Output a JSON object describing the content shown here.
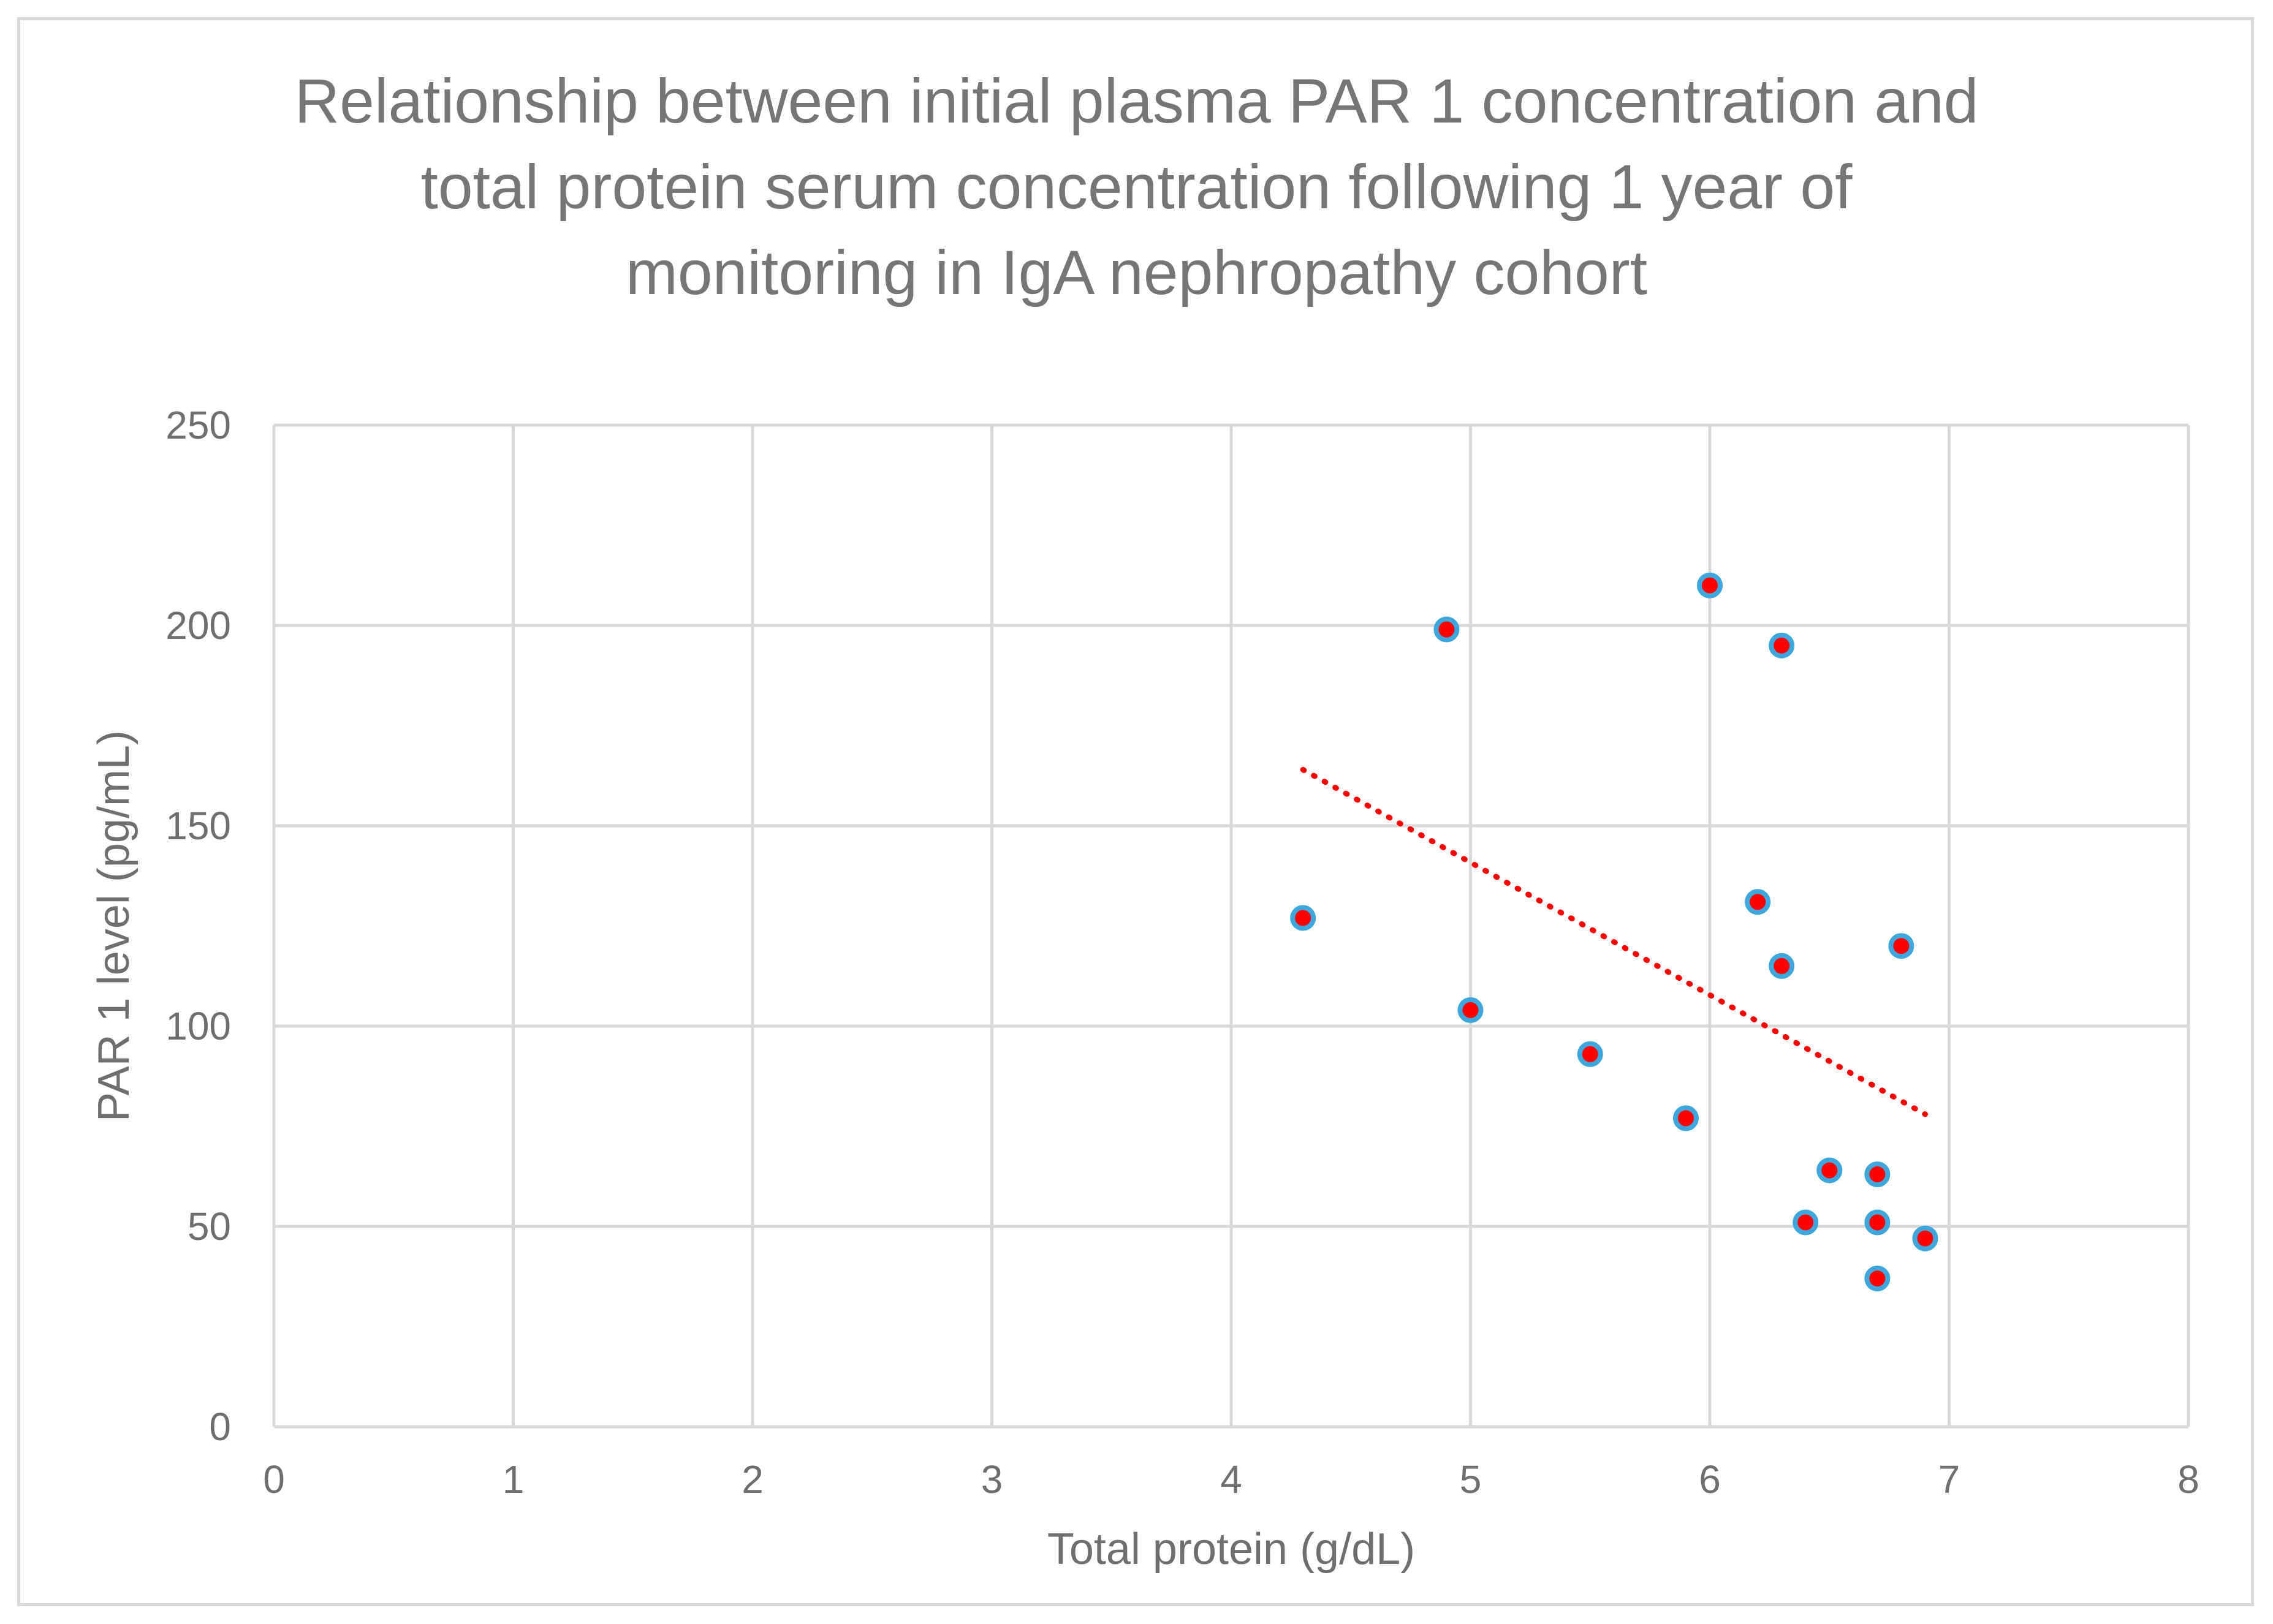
{
  "chart_data": {
    "type": "scatter",
    "title_lines": [
      "Relationship between initial plasma PAR 1 concentration and",
      "total protein serum concentration following  1 year of",
      "monitoring in IgA nephropathy cohort"
    ],
    "xlabel": "Total protein (g/dL)",
    "ylabel": "PAR 1 level (pg/mL)",
    "xlim": [
      0,
      8
    ],
    "ylim": [
      0,
      250
    ],
    "xticks": [
      "0",
      "1",
      "2",
      "3",
      "4",
      "5",
      "6",
      "7",
      "8"
    ],
    "yticks": [
      "0",
      "50",
      "100",
      "150",
      "200",
      "250"
    ],
    "grid": true,
    "legend": "none",
    "series": [
      {
        "name": "PAR 1 level",
        "marker_fill": "#ff0000",
        "marker_edge": "#3fa7dc",
        "points": [
          {
            "x": 4.3,
            "y": 127
          },
          {
            "x": 4.9,
            "y": 199
          },
          {
            "x": 5.0,
            "y": 104
          },
          {
            "x": 5.5,
            "y": 93
          },
          {
            "x": 5.9,
            "y": 77
          },
          {
            "x": 6.0,
            "y": 210
          },
          {
            "x": 6.2,
            "y": 131
          },
          {
            "x": 6.3,
            "y": 195
          },
          {
            "x": 6.3,
            "y": 115
          },
          {
            "x": 6.4,
            "y": 51
          },
          {
            "x": 6.5,
            "y": 64
          },
          {
            "x": 6.7,
            "y": 63
          },
          {
            "x": 6.7,
            "y": 51
          },
          {
            "x": 6.7,
            "y": 37
          },
          {
            "x": 6.8,
            "y": 120
          },
          {
            "x": 6.9,
            "y": 47
          }
        ]
      }
    ],
    "trendline": {
      "type": "linear",
      "color": "#ff0000",
      "style": "dotted",
      "x_start": 4.3,
      "y_start": 164,
      "x_end": 6.9,
      "y_end": 78
    }
  }
}
